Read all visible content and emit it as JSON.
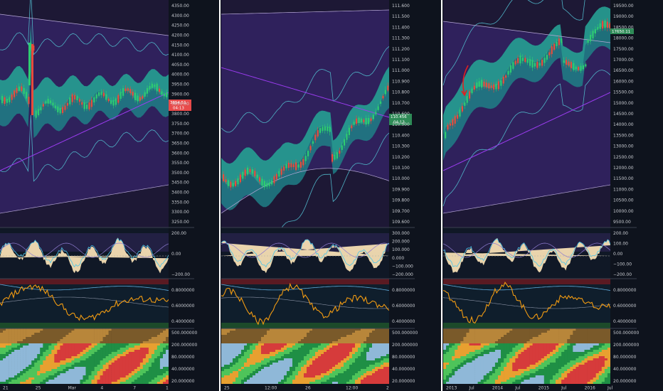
{
  "charts": [
    {
      "price_axis": [
        "4350.00",
        "4300.00",
        "4250.00",
        "4200.00",
        "4150.00",
        "4100.00",
        "4050.00",
        "4000.00",
        "3950.00",
        "3900.00",
        "3850.00",
        "3800.00",
        "3750.00",
        "3700.00",
        "3650.00",
        "3600.00",
        "3550.00",
        "3500.00",
        "3450.00",
        "3400.00",
        "3350.00",
        "3300.00",
        "3250.00"
      ],
      "price_tag": "3854.51",
      "price_tag_sub": "04:13",
      "price_tag_color": "#e84a4a",
      "osc_axis": [
        "200.00",
        "0.00",
        "−200.00"
      ],
      "stoch_axis": [
        "0.8000000",
        "0.6000000",
        "0.4000000"
      ],
      "heat_axis": [
        "500.000000",
        "200.000000",
        "80.000000",
        "40.000000",
        "20.000000"
      ],
      "x_labels": [
        "21",
        "25",
        "Mar",
        "4",
        "7",
        "1"
      ]
    },
    {
      "price_axis": [
        "111.600",
        "111.500",
        "111.400",
        "111.300",
        "111.200",
        "111.100",
        "111.000",
        "110.900",
        "110.800",
        "110.700",
        "110.600",
        "110.500",
        "110.400",
        "110.300",
        "110.200",
        "110.100",
        "110.000",
        "109.900",
        "109.800",
        "109.700",
        "109.600"
      ],
      "price_tag": "110.456",
      "price_tag_sub": "04:13",
      "price_tag_color": "#2e8b57",
      "osc_axis": [
        "300.000",
        "200.000",
        "100.000",
        "0.000",
        "−100.000",
        "−200.000"
      ],
      "stoch_axis": [
        "0.8000000",
        "0.6000000",
        "0.4000000"
      ],
      "heat_axis": [
        "500.000000",
        "200.000000",
        "80.000000",
        "40.000000",
        "20.000000"
      ],
      "x_labels": [
        "25",
        "12:00",
        "26",
        "12:00",
        "2"
      ]
    },
    {
      "price_axis": [
        "19500.00",
        "19000.00",
        "18500.00",
        "18000.00",
        "17500.00",
        "17000.00",
        "16500.00",
        "16000.00",
        "15500.00",
        "15000.00",
        "14500.00",
        "14000.00",
        "13500.00",
        "13000.00",
        "12500.00",
        "12000.00",
        "11500.00",
        "11000.00",
        "10500.00",
        "10000.00",
        "9500.00"
      ],
      "price_tag": "17650.11",
      "price_tag_sub": "",
      "price_tag_color": "#2e8b57",
      "osc_axis": [
        "200.00",
        "100.00",
        "0.00",
        "−100.00",
        "−200.00"
      ],
      "stoch_axis": [
        "0.8000000",
        "0.6000000",
        "0.4000000"
      ],
      "heat_axis": [
        "500.000000",
        "200.000000",
        "80.000000",
        "40.000000",
        "20.000000"
      ],
      "x_labels": [
        "2013",
        "Jul",
        "2014",
        "Jul",
        "2015",
        "Jul",
        "2016",
        "Jul"
      ]
    }
  ],
  "colors": {
    "background": "#0e131d",
    "panel_border": "#ffffff",
    "bull_candle": "#2ecc71",
    "bear_candle": "#e74c3c",
    "cloud": "#2aa39a",
    "violet_band": "#3a1f6a",
    "ma_violet": "#9b3cf0",
    "stoch_line": "#f39c12",
    "osc_fill": "#f5deb3"
  }
}
